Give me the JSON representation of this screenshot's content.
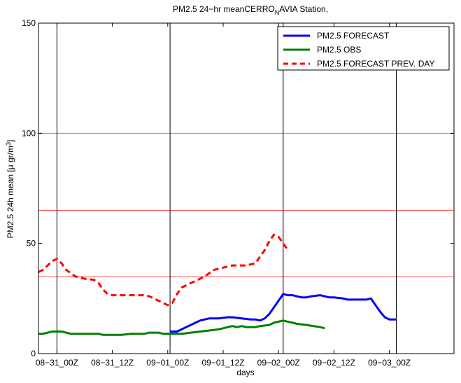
{
  "chart_data": {
    "type": "line",
    "title": {
      "prefix": "PM2.5 24−hr meanCERRO",
      "subscript": "N",
      "suffix": "AVIA Station,"
    },
    "xlabel": "days",
    "ylabel": {
      "prefix": "PM2.5 24h mean [μ gr/m",
      "superscript": "3",
      "suffix": "]"
    },
    "ylim": [
      0,
      150
    ],
    "y_ticks": [
      0,
      50,
      100,
      150
    ],
    "x_unit": "hours from 08-31_00Z",
    "xlim": [
      -4,
      86
    ],
    "x_ticks": [
      {
        "t": 0,
        "label": "08−31_00Z"
      },
      {
        "t": 12,
        "label": "08−31_12Z"
      },
      {
        "t": 24,
        "label": "09−01_00Z"
      },
      {
        "t": 36,
        "label": "09−01_12Z"
      },
      {
        "t": 48,
        "label": "09−02_00Z"
      },
      {
        "t": 60,
        "label": "09−02_12Z"
      },
      {
        "t": 72,
        "label": "09−03_00Z"
      }
    ],
    "day_lines": [
      0,
      24.5,
      49,
      73.5
    ],
    "thresholds": [
      100,
      65,
      35
    ],
    "grid": false,
    "legend_position": "top-right",
    "series": [
      {
        "name": "PM2.5 FORECAST",
        "color": "#0000ff",
        "dash": "solid",
        "points": [
          [
            24.5,
            10
          ],
          [
            26,
            10
          ],
          [
            27,
            11
          ],
          [
            28,
            12
          ],
          [
            30,
            14
          ],
          [
            31,
            15
          ],
          [
            33,
            16
          ],
          [
            35,
            16
          ],
          [
            37,
            16.5
          ],
          [
            38,
            16.5
          ],
          [
            40,
            16
          ],
          [
            42,
            15.5
          ],
          [
            43,
            15.5
          ],
          [
            44,
            15
          ],
          [
            45,
            16
          ],
          [
            46,
            18
          ],
          [
            47,
            21
          ],
          [
            48,
            24
          ],
          [
            49,
            27
          ],
          [
            50,
            26.5
          ],
          [
            51,
            26.5
          ],
          [
            52,
            26
          ],
          [
            53,
            25.5
          ],
          [
            54,
            25.5
          ],
          [
            55,
            26
          ],
          [
            57,
            26.5
          ],
          [
            58,
            26
          ],
          [
            59,
            25.5
          ],
          [
            60,
            25.5
          ],
          [
            62,
            25
          ],
          [
            63,
            24.5
          ],
          [
            64,
            24.5
          ],
          [
            67,
            24.5
          ],
          [
            68,
            25
          ],
          [
            69,
            22
          ],
          [
            70,
            19
          ],
          [
            71,
            16.5
          ],
          [
            72,
            15.5
          ],
          [
            73.5,
            15.5
          ]
        ]
      },
      {
        "name": "PM2.5 OBS",
        "color": "#008000",
        "dash": "solid",
        "points": [
          [
            -4,
            9
          ],
          [
            -3,
            9
          ],
          [
            -2,
            9.5
          ],
          [
            -1,
            10
          ],
          [
            0,
            10
          ],
          [
            1,
            10
          ],
          [
            3,
            9
          ],
          [
            5,
            9
          ],
          [
            7,
            9
          ],
          [
            9,
            9
          ],
          [
            10,
            8.5
          ],
          [
            12,
            8.5
          ],
          [
            14,
            8.5
          ],
          [
            16,
            9
          ],
          [
            18,
            9
          ],
          [
            19,
            9
          ],
          [
            20,
            9.5
          ],
          [
            22,
            9.5
          ],
          [
            23,
            9
          ],
          [
            24,
            9
          ],
          [
            26,
            9
          ],
          [
            27,
            9
          ],
          [
            29,
            9.5
          ],
          [
            31,
            10
          ],
          [
            33,
            10.5
          ],
          [
            35,
            11
          ],
          [
            37,
            12
          ],
          [
            38,
            12.5
          ],
          [
            39,
            12
          ],
          [
            40,
            12.5
          ],
          [
            41,
            12
          ],
          [
            42,
            12
          ],
          [
            43,
            12
          ],
          [
            44,
            12.5
          ],
          [
            46,
            13
          ],
          [
            47,
            14
          ],
          [
            48,
            14.5
          ],
          [
            49,
            15
          ],
          [
            50,
            14.5
          ],
          [
            51,
            14
          ],
          [
            52,
            13.5
          ],
          [
            54,
            13
          ],
          [
            57,
            12
          ],
          [
            58,
            11.5
          ]
        ]
      },
      {
        "name": "PM2.5 FORECAST PREV. DAY",
        "color": "#ff0000",
        "dash": "dashed",
        "points": [
          [
            -4,
            37
          ],
          [
            -3,
            38
          ],
          [
            -1,
            42
          ],
          [
            0,
            43
          ],
          [
            1,
            41
          ],
          [
            2,
            38
          ],
          [
            4,
            35
          ],
          [
            6,
            34
          ],
          [
            8,
            33.5
          ],
          [
            9,
            32
          ],
          [
            10,
            29
          ],
          [
            11,
            27
          ],
          [
            12,
            26.5
          ],
          [
            14,
            26.5
          ],
          [
            16,
            26.5
          ],
          [
            17,
            26.5
          ],
          [
            19,
            26.5
          ],
          [
            20,
            26
          ],
          [
            21,
            25
          ],
          [
            22,
            24
          ],
          [
            23,
            23
          ],
          [
            24,
            22
          ],
          [
            25,
            23
          ],
          [
            26,
            27
          ],
          [
            27,
            30
          ],
          [
            28,
            31
          ],
          [
            29,
            32
          ],
          [
            30,
            33
          ],
          [
            32,
            35
          ],
          [
            34,
            38
          ],
          [
            36,
            39
          ],
          [
            38,
            40
          ],
          [
            40,
            40
          ],
          [
            41,
            40
          ],
          [
            43,
            41
          ],
          [
            44,
            44
          ],
          [
            45,
            47
          ],
          [
            46,
            51
          ],
          [
            47,
            54
          ],
          [
            48,
            53
          ],
          [
            49,
            50
          ],
          [
            50,
            47
          ]
        ]
      }
    ]
  }
}
